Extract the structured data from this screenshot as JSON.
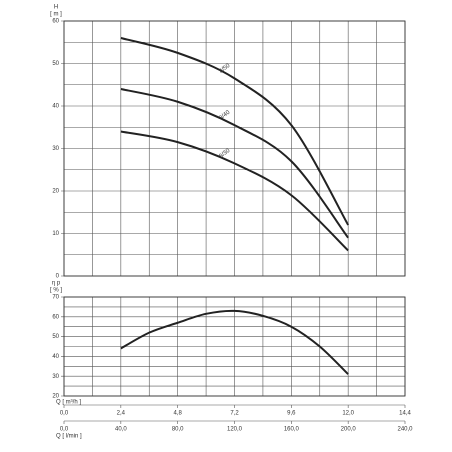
{
  "chart_data": [
    {
      "type": "line",
      "ylabel": "H",
      "yunit": "[ m ]",
      "xlim": [
        0,
        14.4
      ],
      "xgrid": [
        0,
        1.2,
        2.4,
        3.6,
        4.8,
        6.0,
        7.2,
        8.4,
        9.6,
        10.8,
        12.0,
        13.2,
        14.4
      ],
      "ylim": [
        0,
        60
      ],
      "yticks": [
        0,
        10,
        20,
        30,
        40,
        50,
        60
      ],
      "ygrid": [
        5,
        15,
        25,
        35,
        45,
        55
      ],
      "x": [
        2.4,
        4.8,
        7.2,
        9.6,
        12.0
      ],
      "series": [
        {
          "name": "8/50",
          "color": "#222222",
          "values": [
            56,
            52.5,
            46.5,
            35.5,
            12
          ]
        },
        {
          "name": "8/40",
          "color": "#222222",
          "values": [
            44,
            41,
            35.5,
            27,
            9
          ]
        },
        {
          "name": "8/30",
          "color": "#222222",
          "values": [
            34,
            31.5,
            26.5,
            19,
            6
          ]
        }
      ]
    },
    {
      "type": "line",
      "ylabel": "η p",
      "yunit": "[ % ]",
      "xlim": [
        0,
        14.4
      ],
      "xgrid": [
        0,
        1.2,
        2.4,
        3.6,
        4.8,
        6.0,
        7.2,
        8.4,
        9.6,
        10.8,
        12.0,
        13.2,
        14.4
      ],
      "ylim": [
        20,
        70
      ],
      "yticks": [
        20,
        30,
        40,
        50,
        60,
        70
      ],
      "ygrid": [
        25,
        35,
        45,
        55,
        65
      ],
      "xlabel": "Q [ m³/h ]",
      "xticks": [
        {
          "value": 0,
          "label": "0,0"
        },
        {
          "value": 2.4,
          "label": "2,4"
        },
        {
          "value": 4.8,
          "label": "4,8"
        },
        {
          "value": 7.2,
          "label": "7,2"
        },
        {
          "value": 9.6,
          "label": "9,6"
        },
        {
          "value": 12.0,
          "label": "12,0"
        },
        {
          "value": 14.4,
          "label": "14,4"
        }
      ],
      "x2label": "Q [ l/min ]",
      "x2lim": [
        0,
        240
      ],
      "x2ticks": [
        {
          "value": 0,
          "label": "0,0"
        },
        {
          "value": 40,
          "label": "40,0"
        },
        {
          "value": 80,
          "label": "80,0"
        },
        {
          "value": 120,
          "label": "120,0"
        },
        {
          "value": 160,
          "label": "160,0"
        },
        {
          "value": 200,
          "label": "200,0"
        },
        {
          "value": 240,
          "label": "240,0"
        }
      ],
      "x": [
        2.4,
        3.6,
        4.8,
        6.0,
        7.2,
        8.4,
        9.6,
        10.8,
        12.0
      ],
      "series": [
        {
          "name": null,
          "color": "#222222",
          "values": [
            44,
            52,
            57,
            61.5,
            63,
            60.5,
            55,
            45,
            31
          ]
        }
      ]
    }
  ]
}
